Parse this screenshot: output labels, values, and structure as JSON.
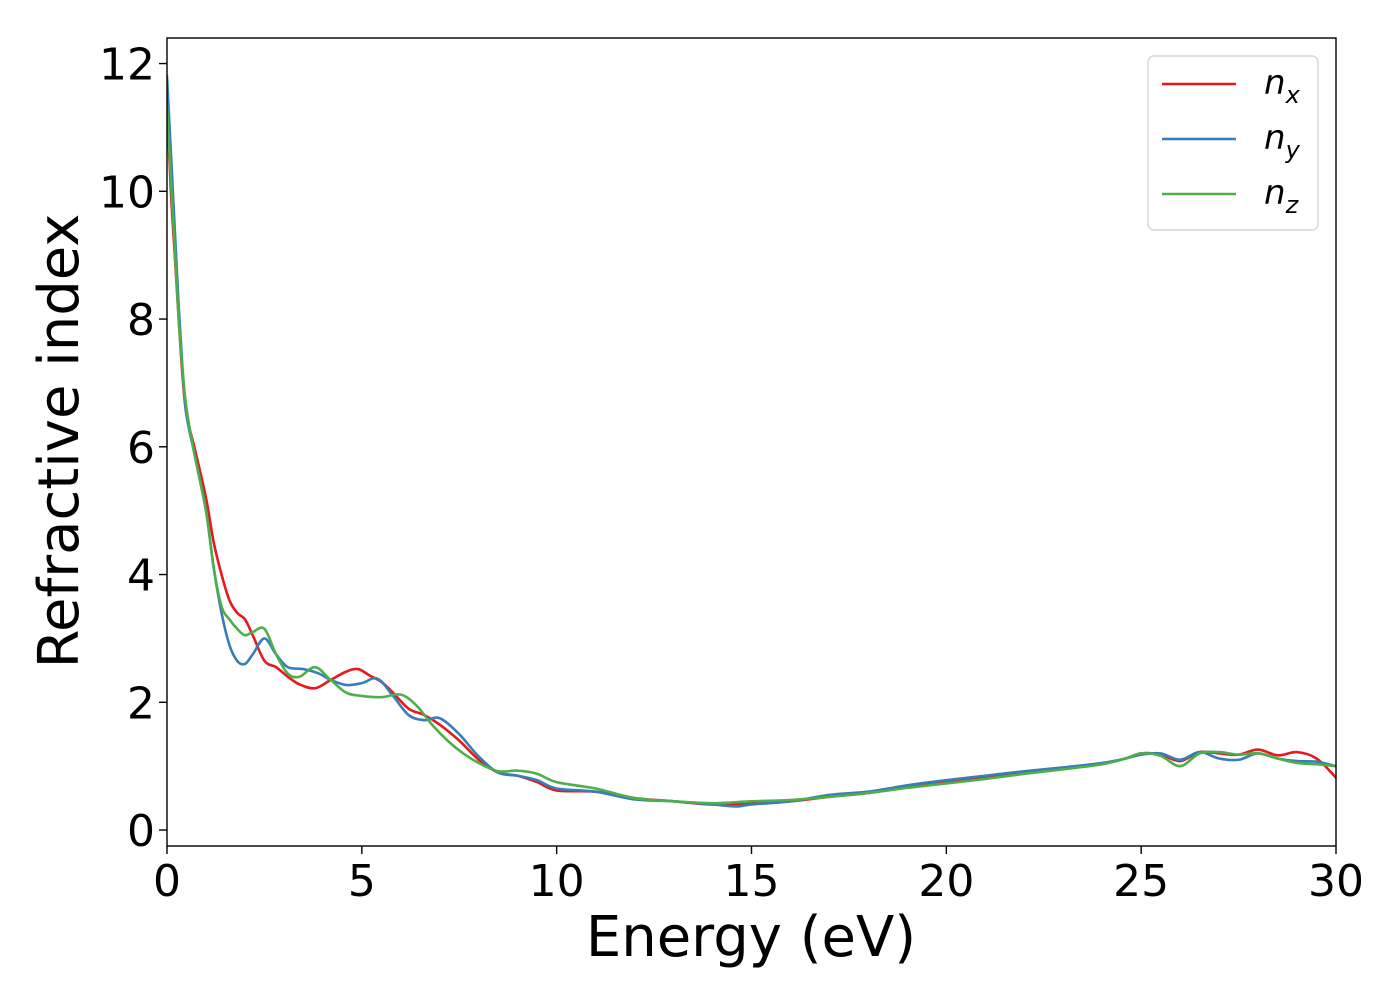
{
  "chart_data": {
    "type": "line",
    "title": "",
    "xlabel": "Energy (eV)",
    "ylabel": "Refractive index",
    "xlim": [
      0,
      30
    ],
    "ylim": [
      -0.25,
      12.4
    ],
    "xticks": [
      0,
      5,
      10,
      15,
      20,
      25,
      30
    ],
    "yticks": [
      0,
      2,
      4,
      6,
      8,
      10,
      12
    ],
    "grid": false,
    "legend_position": "top-right",
    "series": [
      {
        "name": "n",
        "subscript": "x",
        "color": "#e41a1c",
        "points": [
          [
            0.0,
            11.4
          ],
          [
            0.1,
            10.0
          ],
          [
            0.2,
            9.0
          ],
          [
            0.3,
            8.0
          ],
          [
            0.4,
            7.1
          ],
          [
            0.5,
            6.5
          ],
          [
            0.7,
            6.0
          ],
          [
            1.0,
            5.2
          ],
          [
            1.2,
            4.5
          ],
          [
            1.4,
            4.0
          ],
          [
            1.6,
            3.6
          ],
          [
            1.8,
            3.4
          ],
          [
            2.0,
            3.3
          ],
          [
            2.2,
            3.05
          ],
          [
            2.5,
            2.65
          ],
          [
            2.8,
            2.55
          ],
          [
            3.1,
            2.4
          ],
          [
            3.4,
            2.28
          ],
          [
            3.8,
            2.22
          ],
          [
            4.2,
            2.35
          ],
          [
            4.6,
            2.48
          ],
          [
            4.9,
            2.52
          ],
          [
            5.2,
            2.42
          ],
          [
            5.5,
            2.32
          ],
          [
            5.8,
            2.15
          ],
          [
            6.2,
            1.9
          ],
          [
            6.6,
            1.8
          ],
          [
            7.0,
            1.65
          ],
          [
            7.5,
            1.4
          ],
          [
            8.0,
            1.1
          ],
          [
            8.5,
            0.9
          ],
          [
            9.0,
            0.85
          ],
          [
            9.5,
            0.75
          ],
          [
            10.0,
            0.62
          ],
          [
            11.0,
            0.6
          ],
          [
            12.0,
            0.5
          ],
          [
            13.0,
            0.45
          ],
          [
            14.0,
            0.4
          ],
          [
            15.0,
            0.42
          ],
          [
            16.0,
            0.45
          ],
          [
            17.0,
            0.52
          ],
          [
            18.0,
            0.58
          ],
          [
            19.0,
            0.68
          ],
          [
            20.0,
            0.76
          ],
          [
            21.0,
            0.83
          ],
          [
            22.0,
            0.9
          ],
          [
            23.0,
            0.97
          ],
          [
            24.0,
            1.04
          ],
          [
            24.6,
            1.12
          ],
          [
            25.0,
            1.2
          ],
          [
            25.5,
            1.18
          ],
          [
            26.0,
            1.08
          ],
          [
            26.5,
            1.22
          ],
          [
            27.0,
            1.2
          ],
          [
            27.5,
            1.18
          ],
          [
            28.0,
            1.26
          ],
          [
            28.5,
            1.17
          ],
          [
            29.0,
            1.22
          ],
          [
            29.5,
            1.12
          ],
          [
            30.0,
            0.82
          ]
        ]
      },
      {
        "name": "n",
        "subscript": "y",
        "color": "#377eb8",
        "points": [
          [
            0.0,
            11.8
          ],
          [
            0.1,
            10.6
          ],
          [
            0.2,
            9.4
          ],
          [
            0.3,
            8.2
          ],
          [
            0.4,
            7.2
          ],
          [
            0.5,
            6.5
          ],
          [
            0.7,
            5.9
          ],
          [
            1.0,
            5.0
          ],
          [
            1.2,
            4.1
          ],
          [
            1.4,
            3.4
          ],
          [
            1.6,
            2.9
          ],
          [
            1.8,
            2.65
          ],
          [
            2.0,
            2.6
          ],
          [
            2.2,
            2.75
          ],
          [
            2.5,
            3.0
          ],
          [
            2.8,
            2.75
          ],
          [
            3.1,
            2.55
          ],
          [
            3.5,
            2.52
          ],
          [
            3.9,
            2.45
          ],
          [
            4.2,
            2.35
          ],
          [
            4.6,
            2.27
          ],
          [
            5.0,
            2.3
          ],
          [
            5.4,
            2.37
          ],
          [
            5.8,
            2.1
          ],
          [
            6.2,
            1.8
          ],
          [
            6.6,
            1.72
          ],
          [
            7.0,
            1.75
          ],
          [
            7.5,
            1.5
          ],
          [
            8.0,
            1.15
          ],
          [
            8.5,
            0.9
          ],
          [
            9.0,
            0.85
          ],
          [
            9.5,
            0.78
          ],
          [
            10.0,
            0.65
          ],
          [
            11.0,
            0.6
          ],
          [
            12.0,
            0.48
          ],
          [
            13.0,
            0.45
          ],
          [
            14.0,
            0.4
          ],
          [
            14.6,
            0.37
          ],
          [
            15.0,
            0.4
          ],
          [
            16.0,
            0.45
          ],
          [
            17.0,
            0.55
          ],
          [
            18.0,
            0.6
          ],
          [
            19.0,
            0.7
          ],
          [
            20.0,
            0.78
          ],
          [
            21.0,
            0.85
          ],
          [
            22.0,
            0.92
          ],
          [
            23.0,
            0.98
          ],
          [
            24.0,
            1.05
          ],
          [
            24.6,
            1.12
          ],
          [
            25.0,
            1.18
          ],
          [
            25.5,
            1.2
          ],
          [
            26.0,
            1.1
          ],
          [
            26.5,
            1.22
          ],
          [
            27.0,
            1.12
          ],
          [
            27.5,
            1.1
          ],
          [
            28.0,
            1.2
          ],
          [
            28.5,
            1.12
          ],
          [
            29.0,
            1.08
          ],
          [
            29.5,
            1.07
          ],
          [
            30.0,
            1.0
          ]
        ]
      },
      {
        "name": "n",
        "subscript": "z",
        "color": "#4daf4a",
        "points": [
          [
            0.0,
            11.3
          ],
          [
            0.1,
            10.2
          ],
          [
            0.2,
            9.1
          ],
          [
            0.3,
            8.0
          ],
          [
            0.4,
            7.2
          ],
          [
            0.5,
            6.6
          ],
          [
            0.7,
            5.9
          ],
          [
            1.0,
            5.0
          ],
          [
            1.2,
            4.1
          ],
          [
            1.4,
            3.5
          ],
          [
            1.6,
            3.3
          ],
          [
            1.8,
            3.15
          ],
          [
            2.0,
            3.05
          ],
          [
            2.2,
            3.1
          ],
          [
            2.5,
            3.15
          ],
          [
            2.8,
            2.75
          ],
          [
            3.1,
            2.45
          ],
          [
            3.4,
            2.4
          ],
          [
            3.8,
            2.55
          ],
          [
            4.2,
            2.35
          ],
          [
            4.6,
            2.15
          ],
          [
            5.0,
            2.1
          ],
          [
            5.5,
            2.08
          ],
          [
            6.0,
            2.12
          ],
          [
            6.4,
            1.95
          ],
          [
            6.8,
            1.65
          ],
          [
            7.2,
            1.4
          ],
          [
            7.6,
            1.2
          ],
          [
            8.0,
            1.05
          ],
          [
            8.5,
            0.92
          ],
          [
            9.0,
            0.93
          ],
          [
            9.5,
            0.88
          ],
          [
            10.0,
            0.75
          ],
          [
            11.0,
            0.65
          ],
          [
            12.0,
            0.5
          ],
          [
            13.0,
            0.45
          ],
          [
            14.0,
            0.42
          ],
          [
            15.0,
            0.45
          ],
          [
            16.0,
            0.47
          ],
          [
            17.0,
            0.52
          ],
          [
            18.0,
            0.58
          ],
          [
            19.0,
            0.66
          ],
          [
            20.0,
            0.73
          ],
          [
            21.0,
            0.8
          ],
          [
            22.0,
            0.88
          ],
          [
            23.0,
            0.95
          ],
          [
            24.0,
            1.03
          ],
          [
            24.6,
            1.12
          ],
          [
            25.0,
            1.2
          ],
          [
            25.5,
            1.16
          ],
          [
            26.0,
            1.0
          ],
          [
            26.5,
            1.2
          ],
          [
            27.0,
            1.22
          ],
          [
            27.5,
            1.18
          ],
          [
            28.0,
            1.2
          ],
          [
            28.5,
            1.12
          ],
          [
            29.0,
            1.05
          ],
          [
            29.5,
            1.03
          ],
          [
            30.0,
            1.0
          ]
        ]
      }
    ]
  }
}
